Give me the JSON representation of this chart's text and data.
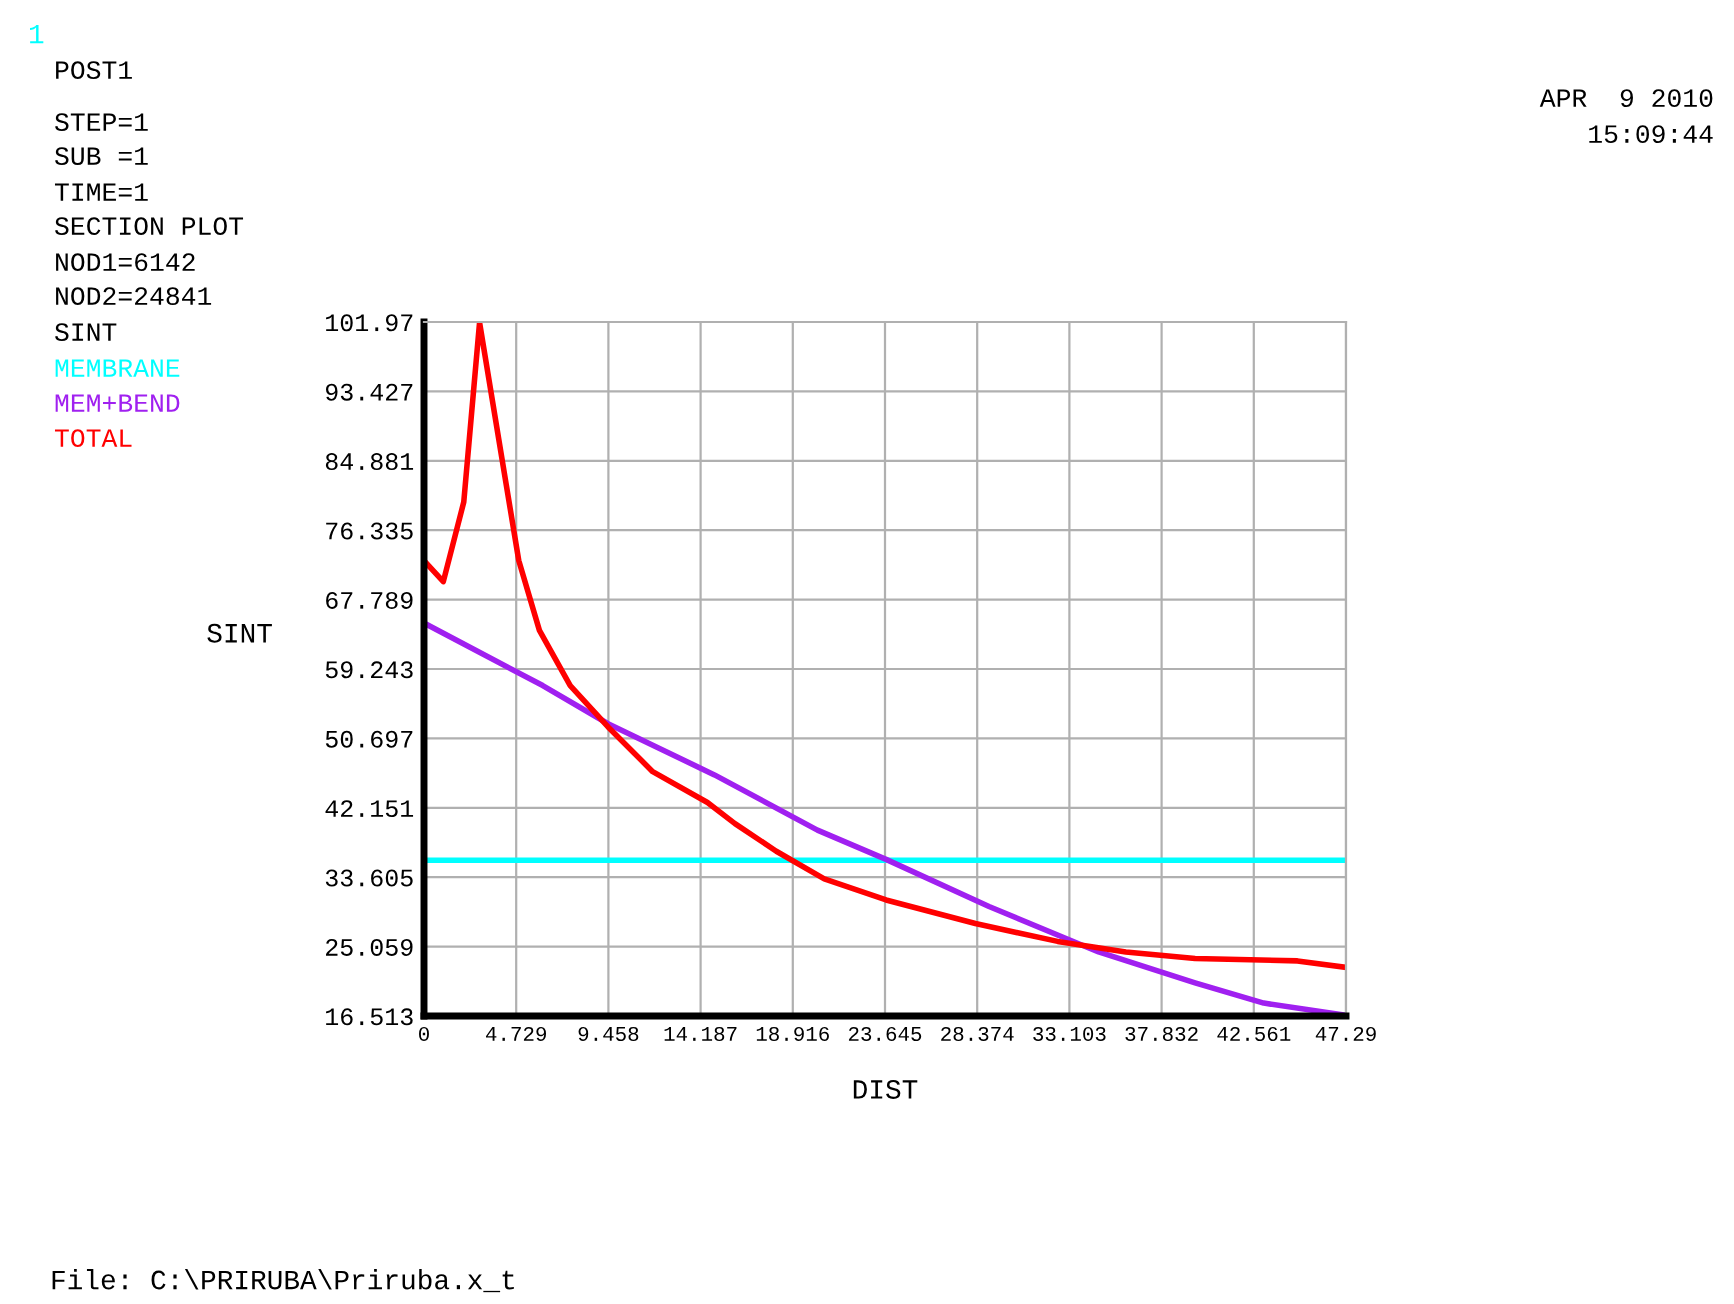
{
  "chart_data": {
    "type": "line",
    "xlabel": "DIST",
    "ylabel": "SINT",
    "annotations": [
      "1",
      "POST1",
      "STEP=1",
      "SUB =1",
      "TIME=1",
      "SECTION PLOT",
      "NOD1=6142",
      "NOD2=24841",
      "SINT",
      "APR  9 2010",
      "15:09:44",
      "File: C:\\PRIRUBA\\Priruba.x_t"
    ],
    "series": [
      {
        "name": "MEMBRANE",
        "color": "#00ffff",
        "x": [
          0,
          47.29
        ],
        "values": [
          35.7,
          35.7
        ]
      },
      {
        "name": "MEM+BEND",
        "color": "#a020f0",
        "x": [
          0,
          6.09,
          9.44,
          14.9,
          20.18,
          23.7,
          28.98,
          34.6,
          39.55,
          43.07,
          47.29
        ],
        "values": [
          64.9,
          57.2,
          52.5,
          46.2,
          39.4,
          35.8,
          30.0,
          24.4,
          20.6,
          18.1,
          16.6
        ]
      },
      {
        "name": "TOTAL",
        "color": "#ff0000",
        "x": [
          0,
          0.99,
          2.04,
          2.85,
          3.98,
          4.86,
          5.92,
          7.5,
          9.44,
          11.73,
          14.54,
          15.95,
          18.07,
          20.53,
          23.7,
          28.28,
          32.5,
          36.0,
          39.55,
          44.8,
          47.29
        ],
        "values": [
          72.6,
          70.0,
          79.8,
          101.9,
          85.4,
          72.6,
          64.0,
          57.2,
          52.1,
          46.6,
          42.8,
          40.2,
          36.8,
          33.4,
          30.8,
          27.9,
          25.7,
          24.4,
          23.6,
          23.3,
          22.5
        ]
      }
    ],
    "xlim": [
      0,
      47.29
    ],
    "ylim": [
      16.513,
      101.97
    ],
    "xticks": [
      0,
      4.729,
      9.458,
      14.187,
      18.916,
      23.645,
      28.374,
      33.103,
      37.832,
      42.561,
      47.29
    ],
    "yticks": [
      16.513,
      25.059,
      33.605,
      42.151,
      50.697,
      59.243,
      67.789,
      76.335,
      84.881,
      93.427,
      101.97
    ],
    "grid": true,
    "legend": false,
    "marker": "none",
    "line_style": "solid"
  }
}
